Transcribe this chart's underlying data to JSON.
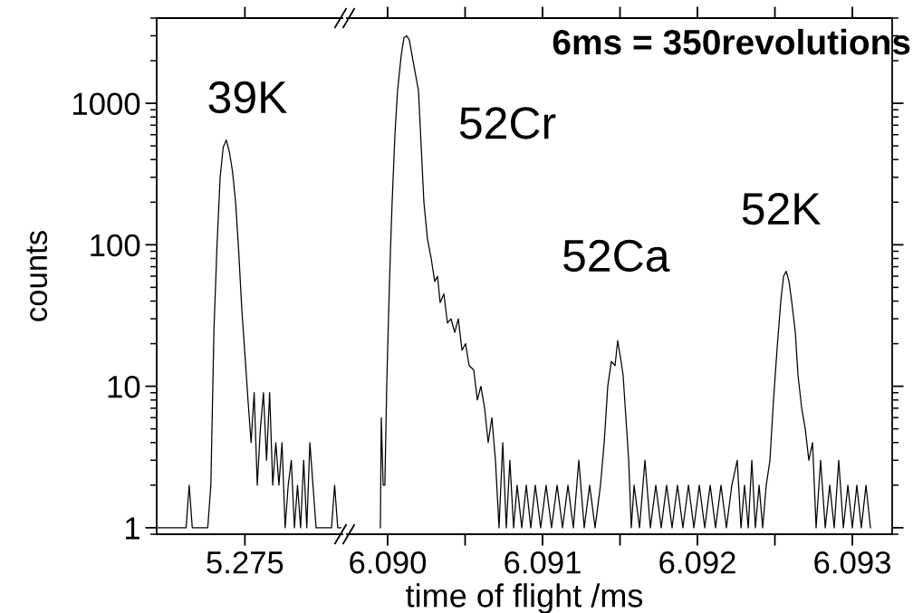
{
  "chart_data": [
    {
      "type": "line",
      "ylabel": "counts",
      "log": "y",
      "grid": false,
      "ylim": [
        0.9,
        4000
      ],
      "yticks": [
        1,
        10,
        100,
        1000
      ],
      "categories": [
        null,
        null,
        null,
        null,
        null,
        null,
        null,
        null,
        null,
        null,
        null,
        null,
        null,
        null,
        null,
        null,
        null,
        null,
        null,
        null,
        null,
        null,
        null,
        null,
        null,
        null,
        null,
        null,
        "5.275",
        null,
        null,
        null,
        null,
        null,
        null,
        null,
        null,
        null,
        null,
        null,
        null,
        null,
        null,
        null,
        null,
        null,
        null,
        null,
        null,
        null,
        null,
        null,
        null,
        null,
        null,
        null,
        null,
        null,
        null,
        null
      ],
      "annotations": [
        "39K"
      ],
      "series": [
        {
          "color": "#000000",
          "values": [
            1,
            1,
            1,
            1,
            1,
            1,
            1,
            1,
            1,
            1,
            2,
            1,
            1,
            1,
            1,
            1,
            1,
            2,
            25,
            100,
            300,
            490,
            550,
            450,
            330,
            200,
            90,
            35,
            17,
            8,
            4,
            9,
            2,
            5,
            9,
            3,
            9,
            2,
            4,
            2,
            4,
            1,
            2,
            3,
            1,
            2,
            1,
            3,
            1,
            4,
            2,
            1,
            1,
            1,
            1,
            1,
            1,
            2,
            1,
            1
          ]
        }
      ]
    },
    {
      "type": "line",
      "xlabel": "time of flight /ms",
      "log": "y",
      "grid": false,
      "tick_labels": "x",
      "ylim": [
        0.9,
        4000
      ],
      "yticks": [
        1,
        10,
        100,
        1000
      ],
      "xlim": [
        6.089737,
        6.093257
      ],
      "xticks": [
        {
          "value": 6.09,
          "label": "6.090"
        },
        {
          "value": 6.0905,
          "label": null
        },
        {
          "value": 6.091,
          "label": "6.091"
        },
        {
          "value": 6.0915,
          "label": null
        },
        {
          "value": 6.092,
          "label": "6.092"
        },
        {
          "value": 6.0925,
          "label": null
        },
        {
          "value": 6.093,
          "label": "6.093"
        }
      ],
      "annotations": [
        "6ms = 350revolutions",
        "52Cr",
        "52Ca",
        "52K"
      ],
      "series": [
        {
          "color": "#000000",
          "x": [
            6.089953,
            6.089959,
            6.089971,
            6.089982,
            6.089994,
            6.090006,
            6.090018,
            6.090029,
            6.090047,
            6.090064,
            6.090088,
            6.090105,
            6.090123,
            6.09014,
            6.090164,
            6.090199,
            6.090234,
            6.090257,
            6.090281,
            6.090304,
            6.090322,
            6.090339,
            6.090363,
            6.090386,
            6.090409,
            6.090433,
            6.090456,
            6.09048,
            6.090503,
            6.090526,
            6.090556,
            6.090579,
            6.090602,
            6.090626,
            6.090649,
            6.090673,
            6.090696,
            6.090719,
            6.090743,
            6.090766,
            6.090789,
            6.090813,
            6.090836,
            6.090866,
            6.090895,
            6.090924,
            6.090953,
            6.090988,
            6.091023,
            6.091058,
            6.091094,
            6.091129,
            6.091164,
            6.091199,
            6.091234,
            6.091269,
            6.091304,
            6.091339,
            6.091374,
            6.091398,
            6.091421,
            6.091444,
            6.091468,
            6.091485,
            6.091503,
            6.09152,
            6.091538,
            6.091556,
            6.091573,
            6.091591,
            6.091626,
            6.091661,
            6.091696,
            6.091731,
            6.091766,
            6.091801,
            6.091836,
            6.091871,
            6.091906,
            6.091942,
            6.091977,
            6.092012,
            6.092047,
            6.092082,
            6.092117,
            6.092152,
            6.092187,
            6.092222,
            6.092257,
            6.092281,
            6.092304,
            6.092328,
            6.092351,
            6.092374,
            6.092398,
            6.092421,
            6.092444,
            6.092468,
            6.092491,
            6.092515,
            6.092538,
            6.092556,
            6.092573,
            6.092591,
            6.092608,
            6.092632,
            6.092649,
            6.092673,
            6.092696,
            6.092719,
            6.092743,
            6.092766,
            6.092795,
            6.092825,
            6.092854,
            6.092883,
            6.092912,
            6.092942,
            6.092971,
            6.093,
            6.093029,
            6.093058,
            6.093088,
            6.093117
          ],
          "values": [
            1,
            6,
            2,
            2,
            10,
            32,
            90,
            200,
            600,
            1230,
            2200,
            2900,
            3000,
            2800,
            2000,
            1230,
            200,
            110,
            80,
            55,
            60,
            39,
            45,
            28,
            30,
            24,
            30,
            18,
            20,
            14,
            13,
            8,
            10,
            7,
            4,
            6,
            3,
            1,
            4,
            1,
            3,
            1,
            2,
            1,
            2,
            1,
            2,
            1,
            2,
            1,
            2,
            1,
            2,
            1,
            3,
            1,
            2,
            1,
            2,
            4,
            10,
            15,
            14,
            21,
            16,
            12,
            6,
            3,
            1,
            2,
            1,
            3,
            1,
            2,
            1,
            2,
            1,
            2,
            1,
            2,
            1,
            2,
            1,
            2,
            1,
            2,
            1,
            2,
            3,
            1,
            2,
            1,
            3,
            1,
            2,
            1,
            2,
            3,
            8,
            19,
            40,
            60,
            65,
            55,
            40,
            24,
            12,
            7,
            5,
            3,
            4,
            1,
            3,
            1,
            2,
            1,
            3,
            1,
            2,
            1,
            2,
            1,
            2,
            1
          ]
        }
      ]
    }
  ]
}
